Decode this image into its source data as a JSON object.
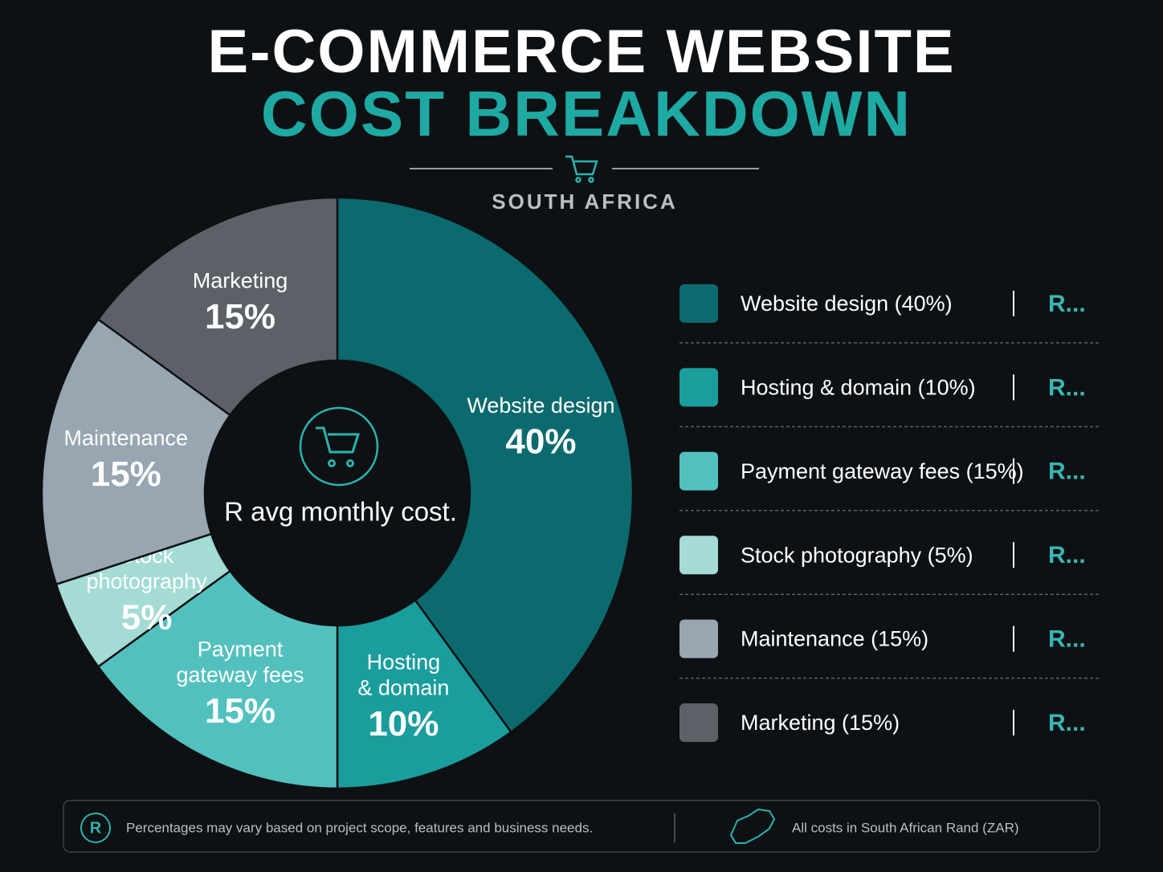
{
  "chart_data": {
    "type": "donut",
    "title": "E-COMMERCE WEBSITE",
    "title_highlight": "COST BREAKDOWN",
    "subtitle": "SOUTH AFRICA",
    "center_label": "R avg monthly cost.",
    "categories": [
      "Website design (40%)",
      "Hosting & domain (10%)",
      "Payment gateway fees (15%)",
      "Stock photography (5%)",
      "Maintenance (15%)",
      "Marketing (15%)"
    ],
    "slice_labels": [
      [
        "Website design"
      ],
      [
        "Hosting",
        "& domain"
      ],
      [
        "Payment",
        "gateway fees"
      ],
      [
        "Stock",
        "photography"
      ],
      [
        "Maintenance"
      ],
      [
        "Marketing"
      ]
    ],
    "values": [
      40,
      10,
      15,
      5,
      15,
      15
    ],
    "value_labels": [
      "40%",
      "10%",
      "15%",
      "5%",
      "15%",
      "15%"
    ],
    "colors": [
      "#0b6a6d",
      "#1a9d9d",
      "#52c1be",
      "#a4dbd4",
      "#98a6b2",
      "#5b6167"
    ],
    "amounts": [
      "R...",
      "R...",
      "R...",
      "R...",
      "R...",
      "R..."
    ],
    "footer": {
      "icon": "R",
      "note": "Percentages may vary based on project scope, features and business needs.",
      "currency": "All costs in South African Rand (ZAR)"
    }
  }
}
